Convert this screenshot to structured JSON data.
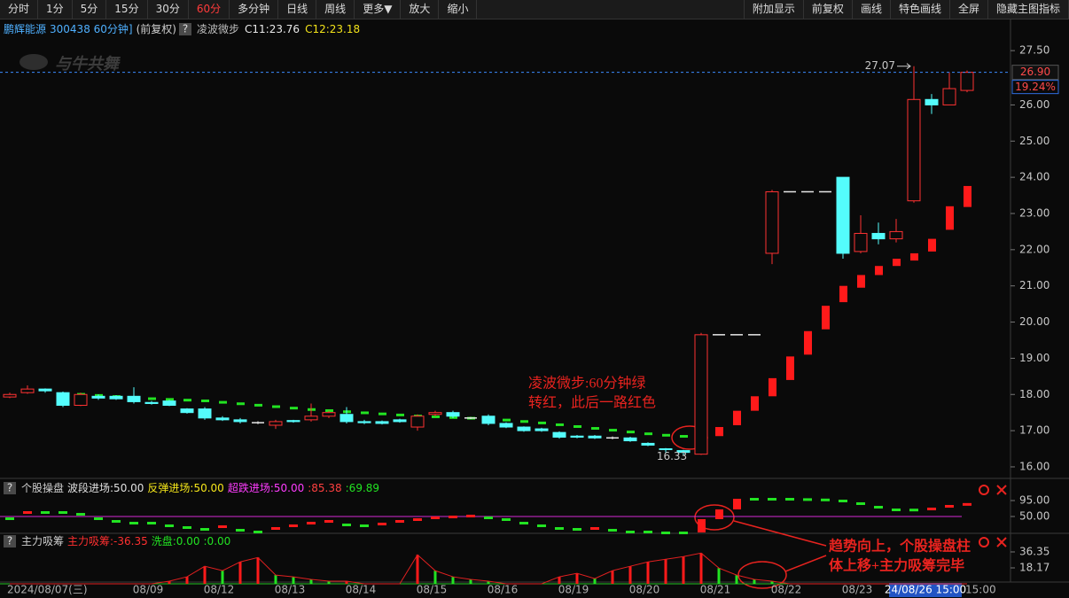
{
  "toolbar": {
    "left": [
      "分时",
      "1分",
      "5分",
      "15分",
      "30分",
      "60分",
      "多分钟",
      "日线",
      "周线",
      "更多▼",
      "放大",
      "缩小"
    ],
    "right": [
      "附加显示",
      "前复权",
      "画线",
      "特色画线",
      "全屏",
      "隐藏主图指标"
    ],
    "active": 5
  },
  "help": "?",
  "watermark": "与牛共舞",
  "chart_data": [
    {
      "type": "candlestick",
      "title": "鹏辉能源",
      "subtitle": "300438 60分钟]",
      "adjust": "(前复权)",
      "indicator": "凌波微步",
      "categories": [
        "2024/08/07(三)",
        null,
        null,
        null,
        null,
        null,
        null,
        null,
        "08/09",
        null,
        null,
        null,
        "08/12",
        null,
        null,
        null,
        "08/13",
        null,
        null,
        null,
        "08/14",
        null,
        null,
        null,
        "08/15",
        null,
        null,
        null,
        "08/16",
        null,
        null,
        null,
        "08/19",
        null,
        null,
        null,
        "08/20",
        null,
        null,
        null,
        "08/21",
        null,
        null,
        null,
        "08/22",
        null,
        null,
        null,
        "08/23",
        null,
        null,
        null,
        null,
        null,
        "15:00"
      ],
      "cursor_label": "24/08/26 15:00",
      "open": [
        17.93,
        18.05,
        18.15,
        18.05,
        17.7,
        17.95,
        17.95,
        17.95,
        17.78,
        17.82,
        17.6,
        17.6,
        17.35,
        17.3,
        17.22,
        17.15,
        17.28,
        17.3,
        17.4,
        17.45,
        17.25,
        17.25,
        17.3,
        17.1,
        17.45,
        17.5,
        17.35,
        17.4,
        17.2,
        17.1,
        17.05,
        16.95,
        16.85,
        16.85,
        16.8,
        16.8,
        16.65,
        16.5,
        16.45,
        16.35,
        19.65,
        19.65,
        19.65,
        21.9,
        23.6,
        23.6,
        23.6,
        24.0,
        21.95,
        22.45,
        22.3,
        23.35,
        26.15,
        26.0,
        26.4
      ],
      "high": [
        18.05,
        18.25,
        18.17,
        18.08,
        18.05,
        18.0,
        17.98,
        18.2,
        17.82,
        17.85,
        17.62,
        17.65,
        17.4,
        17.35,
        17.26,
        17.3,
        17.3,
        17.75,
        17.55,
        17.65,
        17.3,
        17.28,
        17.33,
        17.45,
        17.55,
        17.55,
        17.38,
        17.45,
        17.23,
        17.12,
        17.08,
        16.98,
        16.88,
        16.88,
        16.84,
        16.83,
        16.68,
        16.52,
        16.47,
        19.7,
        19.65,
        19.65,
        19.65,
        23.65,
        23.6,
        23.6,
        23.6,
        24.0,
        22.95,
        22.75,
        22.85,
        27.07,
        26.3,
        26.9,
        26.95
      ],
      "low": [
        17.9,
        18.02,
        18.05,
        17.65,
        17.68,
        17.85,
        17.85,
        17.75,
        17.72,
        17.68,
        17.47,
        17.3,
        17.27,
        17.2,
        17.18,
        17.05,
        17.22,
        17.25,
        17.35,
        17.2,
        17.18,
        17.17,
        17.22,
        17.0,
        17.4,
        17.35,
        17.32,
        17.15,
        17.07,
        16.97,
        16.97,
        16.78,
        16.79,
        16.77,
        16.76,
        16.69,
        16.57,
        16.4,
        16.33,
        16.33,
        19.65,
        19.65,
        19.65,
        21.6,
        23.6,
        23.6,
        23.6,
        21.75,
        21.9,
        22.15,
        22.2,
        23.3,
        25.75,
        26.0,
        26.35
      ],
      "close": [
        18.0,
        18.15,
        18.1,
        17.7,
        18.0,
        17.9,
        17.88,
        17.8,
        17.75,
        17.7,
        17.5,
        17.35,
        17.3,
        17.25,
        17.22,
        17.25,
        17.25,
        17.4,
        17.5,
        17.25,
        17.22,
        17.2,
        17.25,
        17.4,
        17.5,
        17.4,
        17.35,
        17.2,
        17.1,
        17.0,
        17.0,
        16.82,
        16.82,
        16.8,
        16.8,
        16.72,
        16.6,
        16.48,
        16.4,
        19.65,
        19.65,
        19.65,
        19.65,
        23.6,
        23.6,
        23.6,
        23.6,
        21.9,
        22.45,
        22.3,
        22.5,
        26.15,
        26.0,
        26.45,
        26.9
      ],
      "up_color": "#ff3232",
      "down_color": "#54fcfc",
      "flat_color": "#e8e8e8",
      "series": [
        {
          "legend": "C11:23.76",
          "color": "#e8e8e8",
          "values": [
            null,
            null,
            null,
            null,
            18.0,
            17.97,
            17.94,
            17.91,
            17.88,
            17.86,
            17.84,
            17.82,
            17.78,
            17.74,
            17.7,
            17.66,
            17.62,
            17.58,
            17.55,
            17.52,
            17.49,
            17.46,
            17.43,
            17.4,
            17.38,
            17.36,
            17.34,
            17.32,
            17.29,
            17.25,
            17.21,
            17.16,
            17.11,
            17.06,
            17.01,
            16.96,
            16.91,
            16.87,
            16.84,
            16.88,
            17.1,
            17.55,
            17.95,
            18.45,
            19.05,
            19.75,
            20.45,
            21.0,
            21.3,
            21.55,
            21.75,
            21.9,
            22.3,
            23.2,
            23.76
          ]
        },
        {
          "legend": "C12:23.18",
          "color": "#f2e21a",
          "values": [
            null,
            null,
            null,
            null,
            18.04,
            18.01,
            17.98,
            17.95,
            17.92,
            17.9,
            17.88,
            17.86,
            17.82,
            17.78,
            17.74,
            17.7,
            17.66,
            17.62,
            17.59,
            17.56,
            17.53,
            17.5,
            17.47,
            17.44,
            17.42,
            17.4,
            17.38,
            17.36,
            17.33,
            17.29,
            17.25,
            17.2,
            17.15,
            17.1,
            17.05,
            17.0,
            16.95,
            16.91,
            16.88,
            16.8,
            16.85,
            17.15,
            17.55,
            17.95,
            18.4,
            19.1,
            19.8,
            20.55,
            20.95,
            21.3,
            21.55,
            21.7,
            21.95,
            22.55,
            23.18
          ]
        }
      ],
      "series_up_color": "#ff1a1a",
      "series_down_color": "#22e322",
      "ylim": [
        15.73,
        28.36
      ],
      "yticks": [
        {
          "value": 27.5,
          "label": "27.50"
        },
        {
          "value": 26,
          "label": "26.00"
        },
        {
          "value": 25,
          "label": "25.00"
        },
        {
          "value": 24,
          "label": "24.00"
        },
        {
          "value": 23,
          "label": "23.00"
        },
        {
          "value": 22,
          "label": "22.00"
        },
        {
          "value": 21,
          "label": "21.00"
        },
        {
          "value": 20,
          "label": "20.00"
        },
        {
          "value": 19,
          "label": "19.00"
        },
        {
          "value": 18,
          "label": "18.00"
        },
        {
          "value": 17,
          "label": "17.00"
        },
        {
          "value": 16,
          "label": "16.00"
        }
      ],
      "grid": false,
      "last_price": {
        "value": 26.9,
        "label": "26.90"
      },
      "change_label": "19.24%",
      "high_label": 27.07,
      "low_label": 16.33,
      "annotations": [
        {
          "lines": [
            "凌波微步:60分钟绿",
            "转红，此后一路红色"
          ]
        },
        {
          "lines": [
            "趋势向上，个股操盘柱",
            "体上移+主力吸筹完毕"
          ]
        }
      ]
    },
    {
      "type": "indicator-bar",
      "title": "个股操盘",
      "legend": [
        {
          "text": "波段进场:50.00",
          "color": "#e0e0e0"
        },
        {
          "text": "反弹进场:50.00",
          "color": "#f5e61a"
        },
        {
          "text": "超跌进场:50.00",
          "color": "#ff3cff"
        },
        {
          "text": ":85.38",
          "color": "#ff4040"
        },
        {
          "text": ":69.89",
          "color": "#22e322"
        }
      ],
      "values": [
        45,
        62.5,
        62.5,
        62.5,
        57.5,
        45,
        37.5,
        32.5,
        32.5,
        25,
        20,
        15,
        22.5,
        12.5,
        7.5,
        17.5,
        25,
        32.5,
        37.5,
        27.5,
        25,
        30,
        37.5,
        42.5,
        47.5,
        50,
        52.5,
        47.5,
        42.5,
        32.5,
        25,
        17.5,
        15,
        17.5,
        12.5,
        7.5,
        7.5,
        5,
        5,
        42.5,
        70,
        100,
        100,
        100,
        100,
        99,
        98,
        95,
        87.5,
        77.5,
        70,
        69.5,
        72.5,
        80,
        85.38
      ],
      "up_color": "#ff1a1a",
      "down_color": "#22e322",
      "ref_line": {
        "value": 50,
        "color": "#d42ad4"
      },
      "ylim": [
        5,
        117.5
      ],
      "yticks": [
        {
          "value": 95,
          "label": "95.00"
        },
        {
          "value": 50,
          "label": "50.00"
        }
      ]
    },
    {
      "type": "bar",
      "title": "主力吸筹",
      "legend": [
        {
          "text": "主力吸筹:-36.35",
          "color": "#ff3030"
        },
        {
          "text": "洗盘:0.00",
          "color": "#22e322"
        },
        {
          "text": ":0.00",
          "color": "#22e322"
        }
      ],
      "values": [
        0,
        0,
        0,
        0,
        0,
        0,
        0,
        0,
        0,
        3,
        8,
        20,
        15,
        25,
        30,
        10,
        8,
        5,
        3,
        3,
        0,
        0,
        0,
        33,
        15,
        8,
        5,
        3,
        0,
        0,
        0,
        8,
        12,
        6,
        15,
        20,
        25,
        28,
        31,
        35,
        18,
        10,
        5,
        3,
        0,
        0,
        0,
        0,
        0,
        0,
        0,
        0,
        0,
        0,
        0
      ],
      "up_color": "#ff1a1a",
      "down_color": "#22e322",
      "line_color": "#e02020",
      "ylim": [
        0,
        55.5
      ],
      "yticks": [
        {
          "value": 36.35,
          "label": "36.35"
        },
        {
          "value": 18.17,
          "label": "18.17"
        }
      ]
    }
  ]
}
